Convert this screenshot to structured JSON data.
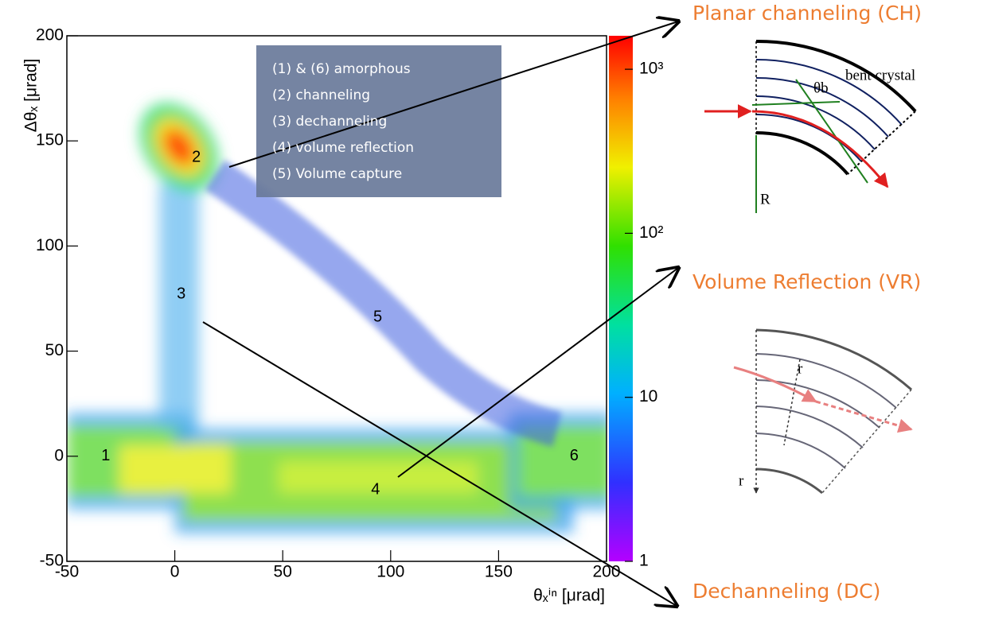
{
  "chart_data": {
    "type": "histogram2d",
    "xlabel": "θₓⁱⁿ [μrad]",
    "ylabel": "Δθₓ [μrad]",
    "xlim": [
      -50,
      200
    ],
    "ylim": [
      -50,
      200
    ],
    "xticks": [
      -50,
      0,
      50,
      100,
      150,
      200
    ],
    "yticks": [
      -50,
      0,
      50,
      100,
      150,
      200
    ],
    "zlim": [
      1,
      1600
    ],
    "zscale": "log",
    "zticks": [
      1,
      10,
      {
        "value": 100,
        "label": "10²"
      },
      {
        "value": 1000,
        "label": "10³"
      }
    ],
    "regions": [
      {
        "label": "1",
        "x": -32,
        "y": 0
      },
      {
        "label": "2",
        "x": 10,
        "y": 142
      },
      {
        "label": "3",
        "x": 3,
        "y": 77
      },
      {
        "label": "4",
        "x": 93,
        "y": -16
      },
      {
        "label": "5",
        "x": 94,
        "y": 66
      },
      {
        "label": "6",
        "x": 185,
        "y": 0
      }
    ],
    "legend_box": [
      "(1) & (6) amorphous",
      "(2) channeling",
      "(3) dechanneling",
      "(4) volume reflection",
      "(5) Volume capture"
    ],
    "callouts": [
      "Planar channeling (CH)",
      "Volume Reflection (VR)",
      "Dechanneling (DC)"
    ],
    "diagram_labels": {
      "bent_crystal": "bent crystal",
      "theta_b": "θb",
      "R": "R",
      "r_vr": "r",
      "r_axis": "r"
    }
  }
}
